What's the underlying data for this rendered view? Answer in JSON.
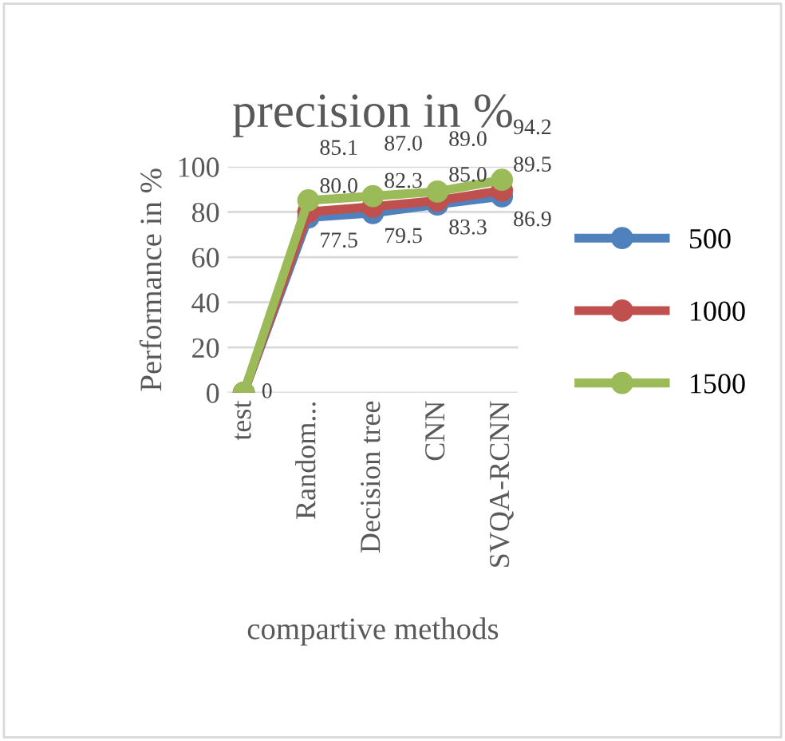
{
  "chart_data": {
    "type": "line",
    "title": "precision in %",
    "xlabel": "compartive methods",
    "ylabel": "Performance in %",
    "categories": [
      "test",
      "Random...",
      "Decision tree",
      "CNN",
      "SVQA-RCNN"
    ],
    "series": [
      {
        "name": "500",
        "color": "#4f81bd",
        "values": [
          0,
          77.5,
          79.5,
          83.3,
          86.9
        ],
        "value_labels": [
          "0",
          "77.5",
          "79.5",
          "83.3",
          "86.9"
        ]
      },
      {
        "name": "1000",
        "color": "#c0504d",
        "values": [
          0,
          80.0,
          82.3,
          85.0,
          89.5
        ],
        "value_labels": [
          null,
          "80.0",
          "82.3",
          "85.0",
          "89.5"
        ]
      },
      {
        "name": "1500",
        "color": "#9bbb59",
        "values": [
          0,
          85.1,
          87.0,
          89.0,
          94.2
        ],
        "value_labels": [
          null,
          "85.1",
          "87.0",
          "89.0",
          "94.2"
        ]
      }
    ],
    "ylim": [
      0,
      100
    ],
    "yticks": [
      0,
      20,
      40,
      60,
      80,
      100
    ],
    "grid": "y",
    "legend": "right",
    "marker": "circle",
    "line_style": "solid"
  }
}
